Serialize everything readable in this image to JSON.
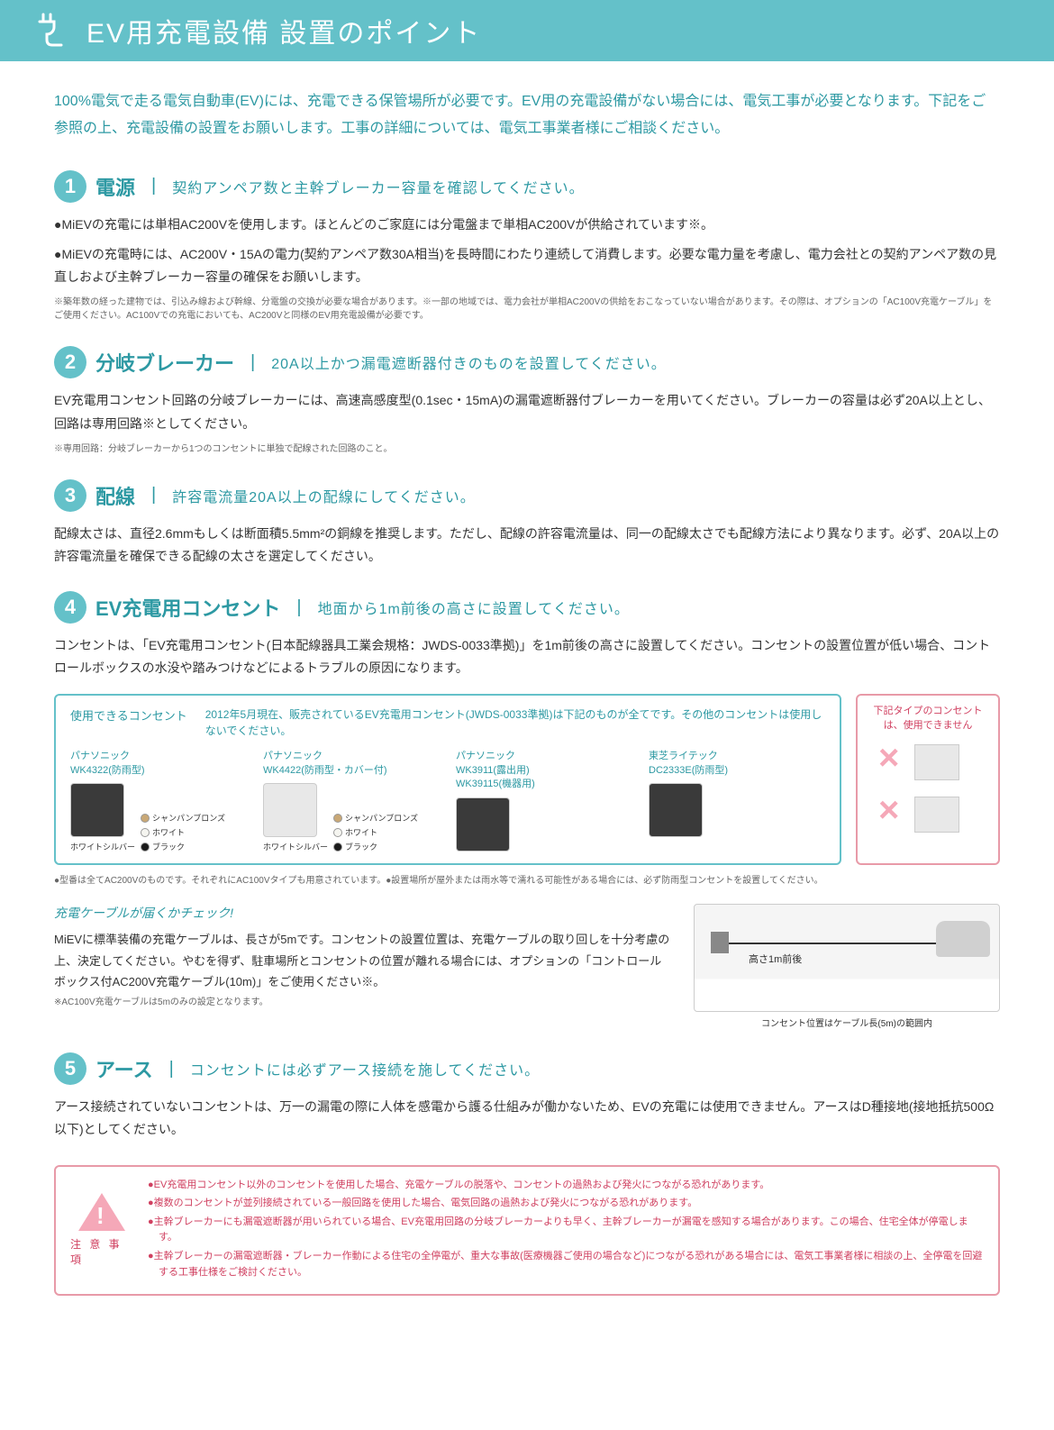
{
  "header": {
    "title": "EV用充電設備 設置のポイント"
  },
  "intro": "100%電気で走る電気自動車(EV)には、充電できる保管場所が必要です。EV用の充電設備がない場合には、電気工事が必要となります。下記をご参照の上、充電設備の設置をお願いします。工事の詳細については、電気工事業者様にご相談ください。",
  "sections": [
    {
      "num": "1",
      "title": "電源",
      "subtitle": "契約アンペア数と主幹ブレーカー容量を確認してください。",
      "body1": "●MiEVの充電には単相AC200Vを使用します。ほとんどのご家庭には分電盤まで単相AC200Vが供給されています※。",
      "body2": "●MiEVの充電時には、AC200V・15Aの電力(契約アンペア数30A相当)を長時間にわたり連続して消費します。必要な電力量を考慮し、電力会社との契約アンペア数の見直しおよび主幹ブレーカー容量の確保をお願いします。",
      "note": "※築年数の経った建物では、引込み線および幹線、分電盤の交換が必要な場合があります。※一部の地域では、電力会社が単相AC200Vの供給をおこなっていない場合があります。その際は、オプションの「AC100V充電ケーブル」をご使用ください。AC100Vでの充電においても、AC200Vと同様のEV用充電設備が必要です。"
    },
    {
      "num": "2",
      "title": "分岐ブレーカー",
      "subtitle": "20A以上かつ漏電遮断器付きのものを設置してください。",
      "body1": "EV充電用コンセント回路の分岐ブレーカーには、高速高感度型(0.1sec・15mA)の漏電遮断器付ブレーカーを用いてください。ブレーカーの容量は必ず20A以上とし、回路は専用回路※としてください。",
      "note": "※専用回路：分岐ブレーカーから1つのコンセントに単独で配線された回路のこと。"
    },
    {
      "num": "3",
      "title": "配線",
      "subtitle": "許容電流量20A以上の配線にしてください。",
      "body1": "配線太さは、直径2.6mmもしくは断面積5.5mm²の銅線を推奨します。ただし、配線の許容電流量は、同一の配線太さでも配線方法により異なります。必ず、20A以上の許容電流量を確保できる配線の太さを選定してください。"
    },
    {
      "num": "4",
      "title": "EV充電用コンセント",
      "subtitle": "地面から1m前後の高さに設置してください。",
      "body1": "コンセントは、「EV充電用コンセント(日本配線器具工業会規格：JWDS-0033準拠)」を1m前後の高さに設置してください。コンセントの設置位置が低い場合、コントロールボックスの水没や踏みつけなどによるトラブルの原因になります。"
    },
    {
      "num": "5",
      "title": "アース",
      "subtitle": "コンセントには必ずアース接続を施してください。",
      "body1": "アース接続されていないコンセントは、万一の漏電の際に人体を感電から護る仕組みが働かないため、EVの充電には使用できません。アースはD種接地(接地抵抗500Ω以下)としてください。"
    }
  ],
  "outletBox": {
    "label": "使用できるコンセント",
    "desc": "2012年5月現在、販売されているEV充電用コンセント(JWDS-0033準拠)は下記のものが全てです。その他のコンセントは使用しないでください。",
    "products": [
      {
        "name": "パナソニック\nWK4322(防雨型)",
        "caption": "ホワイトシルバー",
        "colors": [
          "シャンパンブロンズ",
          "ホワイト",
          "ブラック"
        ],
        "swatchColors": [
          "#c9a876",
          "#f5f5f0",
          "#1a1a1a"
        ]
      },
      {
        "name": "パナソニック\nWK4422(防雨型・カバー付)",
        "caption": "ホワイトシルバー",
        "colors": [
          "シャンパンブロンズ",
          "ホワイト",
          "ブラック"
        ],
        "swatchColors": [
          "#c9a876",
          "#f5f5f0",
          "#1a1a1a"
        ]
      },
      {
        "name": "パナソニック\nWK3911(露出用)\nWK39115(機器用)",
        "caption": ""
      },
      {
        "name": "東芝ライテック\nDC2333E(防雨型)",
        "caption": ""
      }
    ],
    "footnote": "●型番は全てAC200Vのものです。それぞれにAC100Vタイプも用意されています。●設置場所が屋外または雨水等で濡れる可能性がある場合には、必ず防雨型コンセントを設置してください。"
  },
  "noUseBox": {
    "header": "下記タイプのコンセントは、使用できません"
  },
  "cableCheck": {
    "title": "充電ケーブルが届くかチェック!",
    "body": "MiEVに標準装備の充電ケーブルは、長さが5mです。コンセントの設置位置は、充電ケーブルの取り回しを十分考慮の上、決定してください。やむを得ず、駐車場所とコンセントの位置が離れる場合には、オプションの「コントロールボックス付AC200V充電ケーブル(10m)」をご使用ください※。",
    "note": "※AC100V充電ケーブルは5mのみの設定となります。",
    "diagramHeight": "高さ1m前後",
    "diagramRange": "コンセント位置はケーブル長(5m)の範囲内"
  },
  "warnings": {
    "label": "注 意 事 項",
    "items": [
      "●EV充電用コンセント以外のコンセントを使用した場合、充電ケーブルの脱落や、コンセントの過熱および発火につながる恐れがあります。",
      "●複数のコンセントが並列接続されている一般回路を使用した場合、電気回路の過熱および発火につながる恐れがあります。",
      "●主幹ブレーカーにも漏電遮断器が用いられている場合、EV充電用回路の分岐ブレーカーよりも早く、主幹ブレーカーが漏電を感知する場合があります。この場合、住宅全体が停電します。",
      "●主幹ブレーカーの漏電遮断器・ブレーカー作動による住宅の全停電が、重大な事故(医療機器ご使用の場合など)につながる恐れがある場合には、電気工事業者様に相談の上、全停電を回避する工事仕様をご検討ください。"
    ]
  },
  "colors": {
    "teal": "#64c1c9",
    "tealText": "#2d99a3",
    "pink": "#e89aa8",
    "pinkText": "#d04060"
  }
}
